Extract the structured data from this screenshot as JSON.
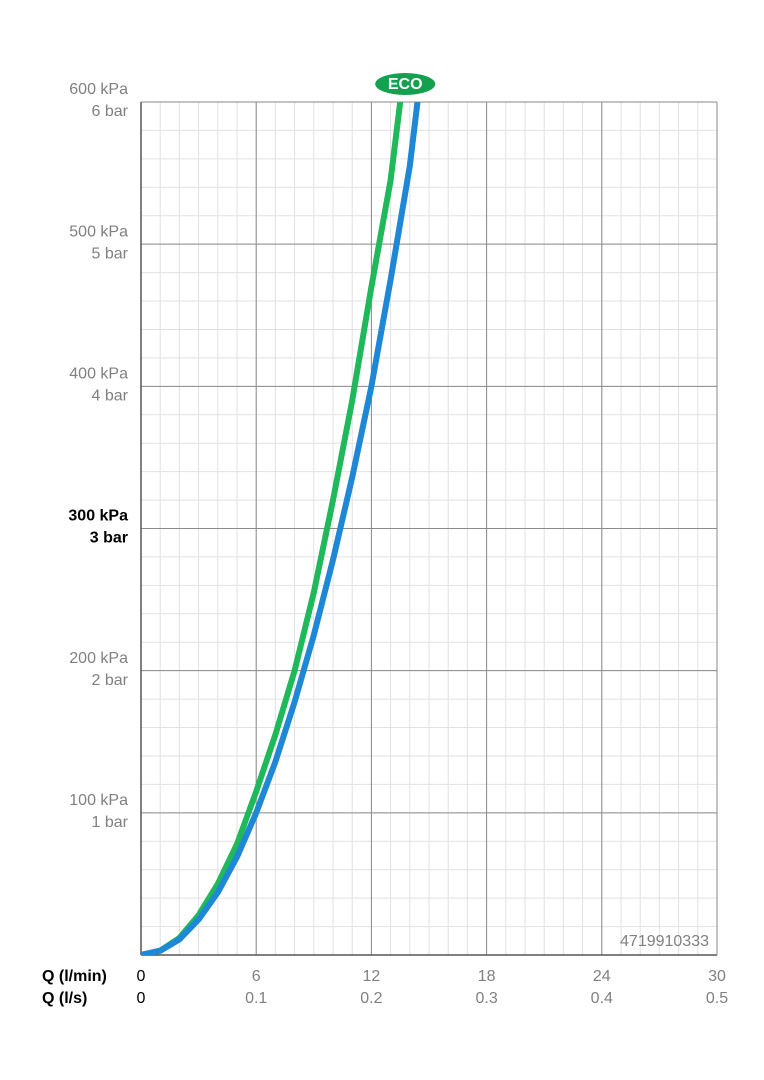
{
  "chart_data": {
    "type": "line",
    "xlabel": "Q (l/min)",
    "x2label": "Q (l/s)",
    "xlim": [
      0,
      30
    ],
    "xticks": [
      0,
      6,
      12,
      18,
      24,
      30
    ],
    "x2lim": [
      0,
      0.5
    ],
    "x2ticks": [
      0,
      0.1,
      0.2,
      0.3,
      0.4,
      0.5
    ],
    "ylim": [
      0,
      600
    ],
    "yticks": [
      {
        "value": 100,
        "label": "100 kPa"
      },
      {
        "value": 200,
        "label": "200 kPa"
      },
      {
        "value": 300,
        "label": "300 kPa"
      },
      {
        "value": 400,
        "label": "400 kPa"
      },
      {
        "value": 500,
        "label": "500 kPa"
      },
      {
        "value": 600,
        "label": "600 kPa"
      }
    ],
    "y2lim": [
      0,
      6
    ],
    "y2ticks": [
      {
        "value": 1,
        "label": "1 bar"
      },
      {
        "value": 2,
        "label": "2 bar"
      },
      {
        "value": 3,
        "label": "3 bar"
      },
      {
        "value": 4,
        "label": "4 bar"
      },
      {
        "value": 5,
        "label": "5 bar"
      },
      {
        "value": 6,
        "label": "6 bar"
      }
    ],
    "emphasized_ytick": 300,
    "grid": true,
    "annotation": "4719910333",
    "series": [
      {
        "name": "ECO",
        "color": "#1fb85a",
        "x": [
          0,
          1,
          2,
          3,
          4,
          5,
          6,
          7,
          8,
          9,
          10,
          11,
          12,
          13,
          13.5
        ],
        "values": [
          0,
          3,
          12,
          28,
          50,
          78,
          115,
          155,
          200,
          255,
          320,
          390,
          470,
          545,
          600
        ]
      },
      {
        "color": "#1e88d6",
        "x": [
          0,
          1,
          2,
          3,
          4,
          5,
          6,
          7,
          8,
          9,
          10,
          11,
          12,
          13,
          14,
          14.4
        ],
        "values": [
          0,
          3,
          11,
          25,
          44,
          69,
          100,
          136,
          178,
          225,
          278,
          336,
          400,
          475,
          555,
          600
        ]
      }
    ]
  }
}
